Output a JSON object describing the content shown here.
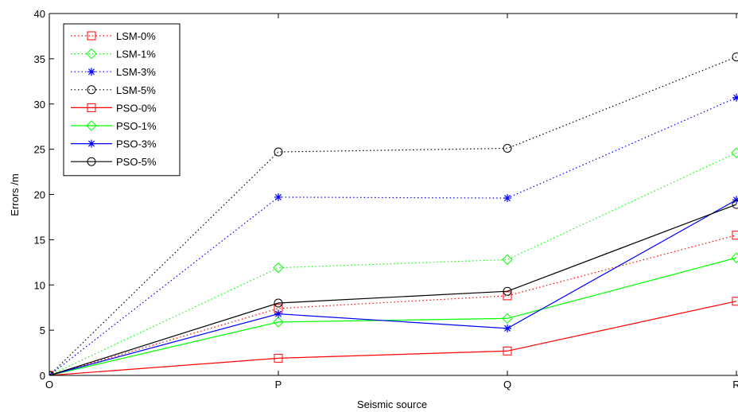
{
  "chart_data": {
    "type": "line",
    "title": "",
    "xlabel": "Seismic source",
    "ylabel": "Errors /m",
    "categories": [
      "O",
      "P",
      "Q",
      "R"
    ],
    "ylim": [
      0,
      40
    ],
    "yticks": [
      0,
      5,
      10,
      15,
      20,
      25,
      30,
      35,
      40
    ],
    "grid": false,
    "legend_position": "top-left",
    "series": [
      {
        "name": "LSM-0%",
        "color": "#ff0000",
        "style": "dotted",
        "marker": "square",
        "values": [
          0,
          7.4,
          8.8,
          15.5
        ]
      },
      {
        "name": "LSM-1%",
        "color": "#00ff00",
        "style": "dotted",
        "marker": "diamond",
        "values": [
          0,
          11.9,
          12.8,
          24.6
        ]
      },
      {
        "name": "LSM-3%",
        "color": "#0000ff",
        "style": "dotted",
        "marker": "star",
        "values": [
          0,
          19.7,
          19.6,
          30.7
        ]
      },
      {
        "name": "LSM-5%",
        "color": "#000000",
        "style": "dotted",
        "marker": "circle",
        "values": [
          0,
          24.7,
          25.1,
          35.2
        ]
      },
      {
        "name": "PSO-0%",
        "color": "#ff0000",
        "style": "solid",
        "marker": "square",
        "values": [
          0,
          1.9,
          2.7,
          8.2
        ]
      },
      {
        "name": "PSO-1%",
        "color": "#00ff00",
        "style": "solid",
        "marker": "diamond",
        "values": [
          0,
          5.9,
          6.3,
          13.0
        ]
      },
      {
        "name": "PSO-3%",
        "color": "#0000ff",
        "style": "solid",
        "marker": "star",
        "values": [
          0,
          6.8,
          5.2,
          19.4
        ]
      },
      {
        "name": "PSO-5%",
        "color": "#000000",
        "style": "solid",
        "marker": "circle",
        "values": [
          0,
          8.0,
          9.3,
          18.9
        ]
      }
    ]
  }
}
